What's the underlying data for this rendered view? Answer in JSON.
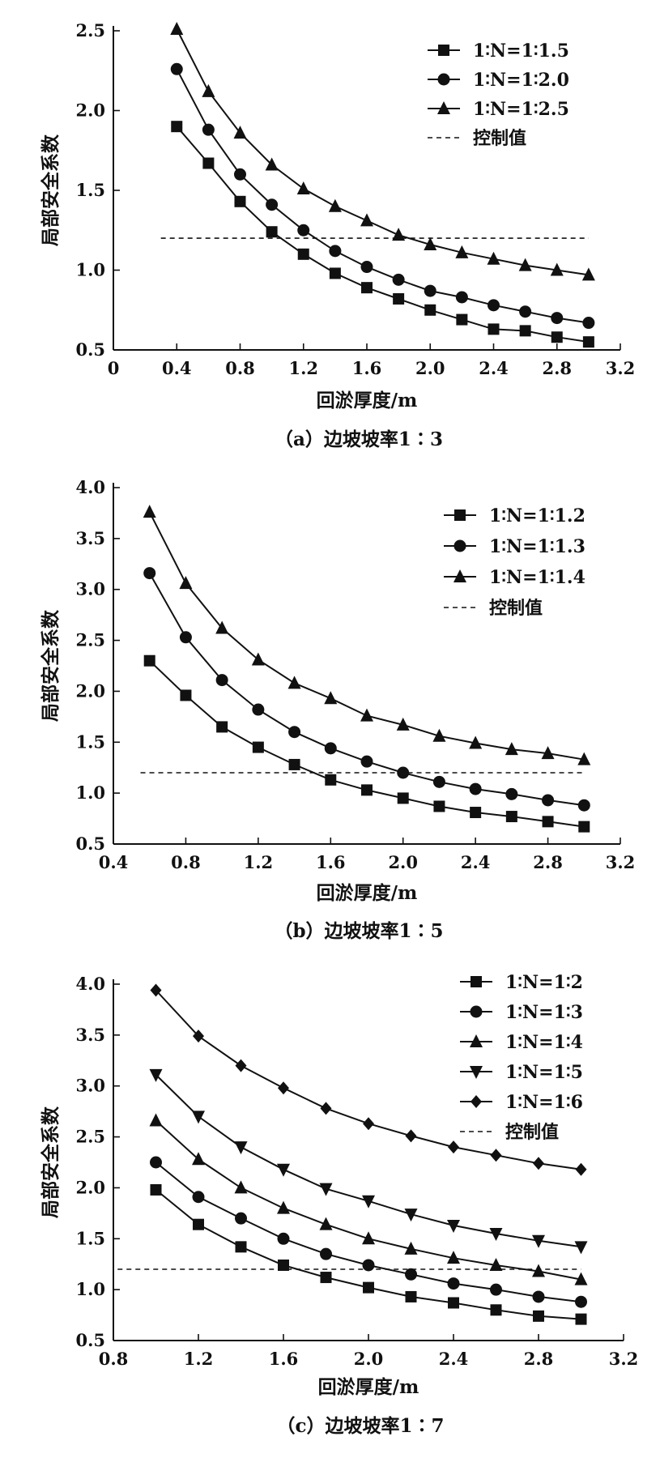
{
  "chart_data": [
    {
      "type": "line",
      "caption": "（a）边坡坡率1∶3",
      "xlabel": "回淤厚度/m",
      "ylabel": "局部安全系数",
      "xlim": [
        0,
        3.2
      ],
      "ylim": [
        0.5,
        2.5
      ],
      "xticks": [
        "0",
        "0.4",
        "0.8",
        "1.2",
        "1.6",
        "2.0",
        "2.4",
        "2.8",
        "3.2"
      ],
      "yticks": [
        "0.5",
        "1.0",
        "1.5",
        "2.0",
        "2.5"
      ],
      "x": [
        0.4,
        0.6,
        0.8,
        1.0,
        1.2,
        1.4,
        1.6,
        1.8,
        2.0,
        2.2,
        2.4,
        2.6,
        2.8,
        3.0
      ],
      "series": [
        {
          "name": "1∶N=1∶1.5",
          "marker": "square",
          "values": [
            1.9,
            1.67,
            1.43,
            1.24,
            1.1,
            0.98,
            0.89,
            0.82,
            0.75,
            0.69,
            0.63,
            0.62,
            0.58,
            0.55
          ]
        },
        {
          "name": "1∶N=1∶2.0",
          "marker": "circle",
          "values": [
            2.26,
            1.88,
            1.6,
            1.41,
            1.25,
            1.12,
            1.02,
            0.94,
            0.87,
            0.83,
            0.78,
            0.74,
            0.7,
            0.67
          ]
        },
        {
          "name": "1∶N=1∶2.5",
          "marker": "triangle-up",
          "values": [
            2.51,
            2.12,
            1.86,
            1.66,
            1.51,
            1.4,
            1.31,
            1.22,
            1.16,
            1.11,
            1.07,
            1.03,
            1.0,
            0.97
          ]
        }
      ],
      "threshold": {
        "name": "控制值",
        "value": 1.2,
        "x_range": [
          0.3,
          3.0
        ]
      },
      "legend_position": "top-right"
    },
    {
      "type": "line",
      "caption": "（b）边坡坡率1∶5",
      "xlabel": "回淤厚度/m",
      "ylabel": "局部安全系数",
      "xlim": [
        0.4,
        3.2
      ],
      "ylim": [
        0.5,
        4.0
      ],
      "xticks": [
        "0.4",
        "0.8",
        "1.2",
        "1.6",
        "2.0",
        "2.4",
        "2.8",
        "3.2"
      ],
      "yticks": [
        "0.5",
        "1.0",
        "1.5",
        "2.0",
        "2.5",
        "3.0",
        "3.5",
        "4.0"
      ],
      "x": [
        0.6,
        0.8,
        1.0,
        1.2,
        1.4,
        1.6,
        1.8,
        2.0,
        2.2,
        2.4,
        2.6,
        2.8,
        3.0
      ],
      "series": [
        {
          "name": "1∶N=1∶1.2",
          "marker": "square",
          "values": [
            2.3,
            1.96,
            1.65,
            1.45,
            1.28,
            1.13,
            1.03,
            0.95,
            0.87,
            0.81,
            0.77,
            0.72,
            0.67
          ]
        },
        {
          "name": "1∶N=1∶1.3",
          "marker": "circle",
          "values": [
            3.16,
            2.53,
            2.11,
            1.82,
            1.6,
            1.44,
            1.31,
            1.2,
            1.11,
            1.04,
            0.99,
            0.93,
            0.88
          ]
        },
        {
          "name": "1∶N=1∶1.4",
          "marker": "triangle-up",
          "values": [
            3.76,
            3.06,
            2.62,
            2.31,
            2.08,
            1.93,
            1.76,
            1.67,
            1.56,
            1.49,
            1.43,
            1.39,
            1.33
          ]
        }
      ],
      "threshold": {
        "name": "控制值",
        "value": 1.2,
        "x_range": [
          0.55,
          3.0
        ]
      },
      "legend_position": "top-right"
    },
    {
      "type": "line",
      "caption": "（c）边坡坡率1∶7",
      "xlabel": "回淤厚度/m",
      "ylabel": "局部安全系数",
      "xlim": [
        0.8,
        3.2
      ],
      "ylim": [
        0.5,
        4.0
      ],
      "xticks": [
        "0.8",
        "1.2",
        "1.6",
        "2.0",
        "2.4",
        "2.8",
        "3.2"
      ],
      "yticks": [
        "0.5",
        "1.0",
        "1.5",
        "2.0",
        "2.5",
        "3.0",
        "3.5",
        "4.0"
      ],
      "x": [
        1.0,
        1.2,
        1.4,
        1.6,
        1.8,
        2.0,
        2.2,
        2.4,
        2.6,
        2.8,
        3.0
      ],
      "series": [
        {
          "name": "1∶N=1∶2",
          "marker": "square",
          "values": [
            1.98,
            1.64,
            1.42,
            1.24,
            1.12,
            1.02,
            0.93,
            0.87,
            0.8,
            0.74,
            0.71
          ]
        },
        {
          "name": "1∶N=1∶3",
          "marker": "circle",
          "values": [
            2.25,
            1.91,
            1.7,
            1.5,
            1.35,
            1.24,
            1.15,
            1.06,
            1.0,
            0.93,
            0.88
          ]
        },
        {
          "name": "1∶N=1∶4",
          "marker": "triangle-up",
          "values": [
            2.66,
            2.28,
            2.0,
            1.8,
            1.64,
            1.5,
            1.4,
            1.31,
            1.24,
            1.18,
            1.1
          ]
        },
        {
          "name": "1∶N=1∶5",
          "marker": "triangle-down",
          "values": [
            3.11,
            2.7,
            2.4,
            2.18,
            1.99,
            1.87,
            1.74,
            1.63,
            1.55,
            1.48,
            1.42
          ]
        },
        {
          "name": "1∶N=1∶6",
          "marker": "diamond",
          "values": [
            3.94,
            3.49,
            3.2,
            2.98,
            2.78,
            2.63,
            2.51,
            2.4,
            2.32,
            2.24,
            2.18
          ]
        }
      ],
      "threshold": {
        "name": "控制值",
        "value": 1.2,
        "x_range": [
          0.82,
          3.0
        ]
      },
      "legend_position": "top-right"
    }
  ]
}
